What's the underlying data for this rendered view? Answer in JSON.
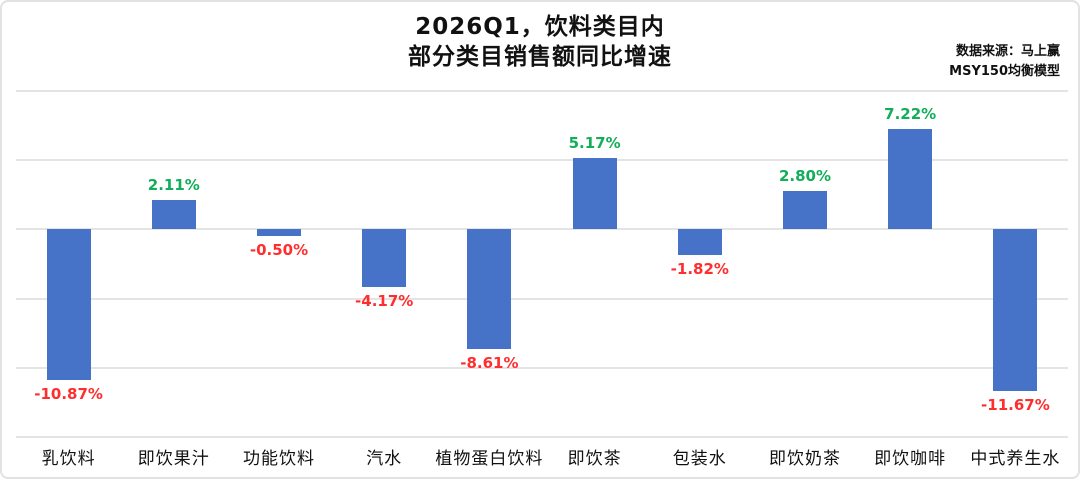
{
  "header": {
    "title_line1": "2026Q1，饮料类目内",
    "title_line2": "部分类目销售额同比增速",
    "source_line1": "数据来源：马上赢",
    "source_line2": "MSY150均衡模型"
  },
  "colors": {
    "bar": "#4673C8",
    "positive_label": "#12AE5A",
    "negative_label": "#FF2E2E",
    "gridline": "#E4E4E4",
    "frame_border": "#E2E2E2"
  },
  "chart_data": {
    "type": "bar",
    "title": "2026Q1，饮料类目内 部分类目销售额同比增速",
    "categories": [
      "乳饮料",
      "即饮果汁",
      "功能饮料",
      "汽水",
      "植物蛋白饮料",
      "即饮茶",
      "包装水",
      "即饮奶茶",
      "即饮咖啡",
      "中式养生水"
    ],
    "values": [
      -10.87,
      2.11,
      -0.5,
      -4.17,
      -8.61,
      5.17,
      -1.82,
      2.8,
      7.22,
      -11.67
    ],
    "labels": [
      "-10.87%",
      "2.11%",
      "-0.50%",
      "-4.17%",
      "-8.61%",
      "5.17%",
      "-1.82%",
      "2.80%",
      "7.22%",
      "-11.67%"
    ],
    "xlabel": "",
    "ylabel": "",
    "ylim": [
      -15,
      10
    ],
    "grid_step": 5,
    "grid": true,
    "y_tick_labels_visible": false,
    "legend": false
  }
}
